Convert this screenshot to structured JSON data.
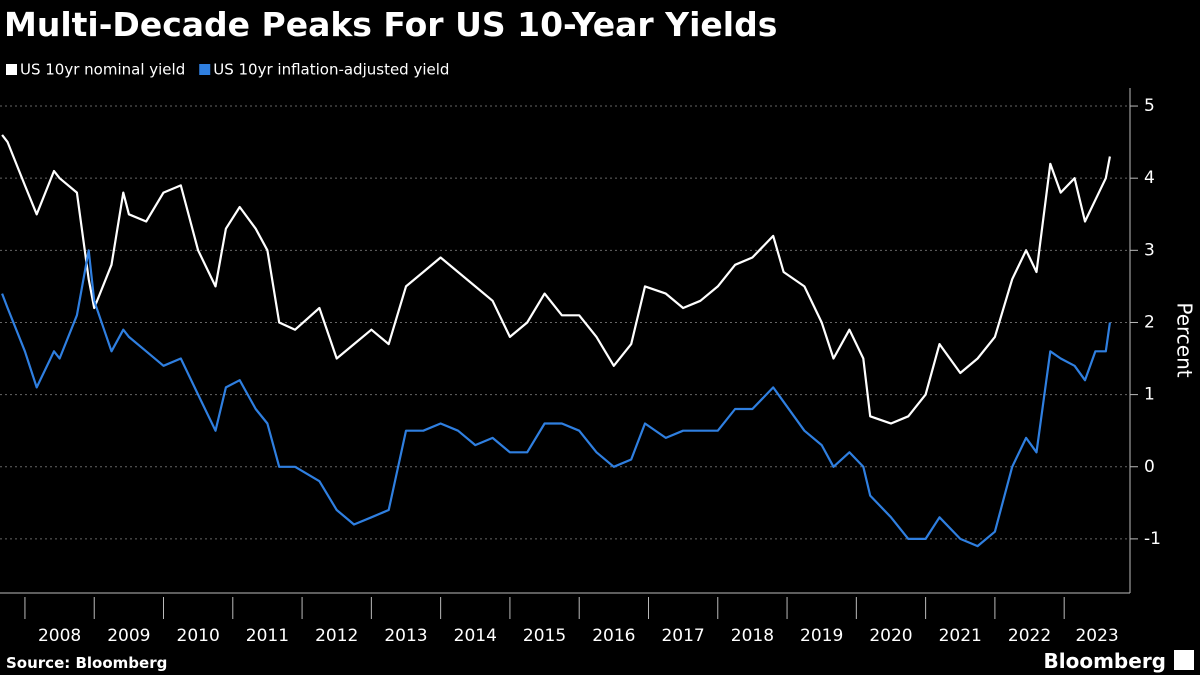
{
  "chart_data": {
    "type": "line",
    "title": "Multi-Decade Peaks For US 10-Year Yields",
    "y_label": "Percent",
    "source": "Source: Bloomberg",
    "logo": "Bloomberg",
    "x": [
      2007.67,
      2007.75,
      2008.0,
      2008.17,
      2008.42,
      2008.5,
      2008.75,
      2008.92,
      2009.0,
      2009.25,
      2009.42,
      2009.5,
      2009.75,
      2010.0,
      2010.25,
      2010.5,
      2010.75,
      2010.9,
      2011.1,
      2011.33,
      2011.5,
      2011.67,
      2011.9,
      2012.25,
      2012.5,
      2012.75,
      2013.0,
      2013.25,
      2013.5,
      2013.75,
      2014.0,
      2014.25,
      2014.5,
      2014.75,
      2015.0,
      2015.25,
      2015.5,
      2015.75,
      2016.0,
      2016.25,
      2016.5,
      2016.75,
      2016.95,
      2017.25,
      2017.5,
      2017.75,
      2018.0,
      2018.25,
      2018.5,
      2018.8,
      2018.95,
      2019.25,
      2019.5,
      2019.67,
      2019.9,
      2020.1,
      2020.2,
      2020.5,
      2020.75,
      2021.0,
      2021.2,
      2021.5,
      2021.75,
      2022.0,
      2022.25,
      2022.45,
      2022.6,
      2022.8,
      2022.95,
      2023.15,
      2023.3,
      2023.45,
      2023.6,
      2023.66
    ],
    "series": [
      {
        "name": "US 10yr nominal yield",
        "color": "#ffffff",
        "values": [
          4.6,
          4.5,
          3.9,
          3.5,
          4.1,
          4.0,
          3.8,
          2.6,
          2.2,
          2.8,
          3.8,
          3.5,
          3.4,
          3.8,
          3.9,
          3.0,
          2.5,
          3.3,
          3.6,
          3.3,
          3.0,
          2.0,
          1.9,
          2.2,
          1.5,
          1.7,
          1.9,
          1.7,
          2.5,
          2.7,
          2.9,
          2.7,
          2.5,
          2.3,
          1.8,
          2.0,
          2.4,
          2.1,
          2.1,
          1.8,
          1.4,
          1.7,
          2.5,
          2.4,
          2.2,
          2.3,
          2.5,
          2.8,
          2.9,
          3.2,
          2.7,
          2.5,
          2.0,
          1.5,
          1.9,
          1.5,
          0.7,
          0.6,
          0.7,
          1.0,
          1.7,
          1.3,
          1.5,
          1.8,
          2.6,
          3.0,
          2.7,
          4.2,
          3.8,
          4.0,
          3.4,
          3.7,
          4.0,
          4.3
        ]
      },
      {
        "name": "US 10yr inflation-adjusted yield",
        "color": "#2f7fe0",
        "values": [
          2.4,
          2.2,
          1.6,
          1.1,
          1.6,
          1.5,
          2.1,
          3.0,
          2.3,
          1.6,
          1.9,
          1.8,
          1.6,
          1.4,
          1.5,
          1.0,
          0.5,
          1.1,
          1.2,
          0.8,
          0.6,
          0.0,
          0.0,
          -0.2,
          -0.6,
          -0.8,
          -0.7,
          -0.6,
          0.5,
          0.5,
          0.6,
          0.5,
          0.3,
          0.4,
          0.2,
          0.2,
          0.6,
          0.6,
          0.5,
          0.2,
          0.0,
          0.1,
          0.6,
          0.4,
          0.5,
          0.5,
          0.5,
          0.8,
          0.8,
          1.1,
          0.9,
          0.5,
          0.3,
          0.0,
          0.2,
          0.0,
          -0.4,
          -0.7,
          -1.0,
          -1.0,
          -0.7,
          -1.0,
          -1.1,
          -0.9,
          0.0,
          0.4,
          0.2,
          1.6,
          1.5,
          1.4,
          1.2,
          1.6,
          1.6,
          2.0
        ]
      }
    ],
    "xlim": [
      2007.64,
      2023.95
    ],
    "xticks": [
      2008,
      2009,
      2010,
      2011,
      2012,
      2013,
      2014,
      2015,
      2016,
      2017,
      2018,
      2019,
      2020,
      2021,
      2022,
      2023
    ],
    "ylim": [
      -1.75,
      5.25
    ],
    "yticks": [
      -1,
      0,
      1,
      2,
      3,
      4,
      5
    ],
    "grid": true,
    "legend": "top-left"
  }
}
